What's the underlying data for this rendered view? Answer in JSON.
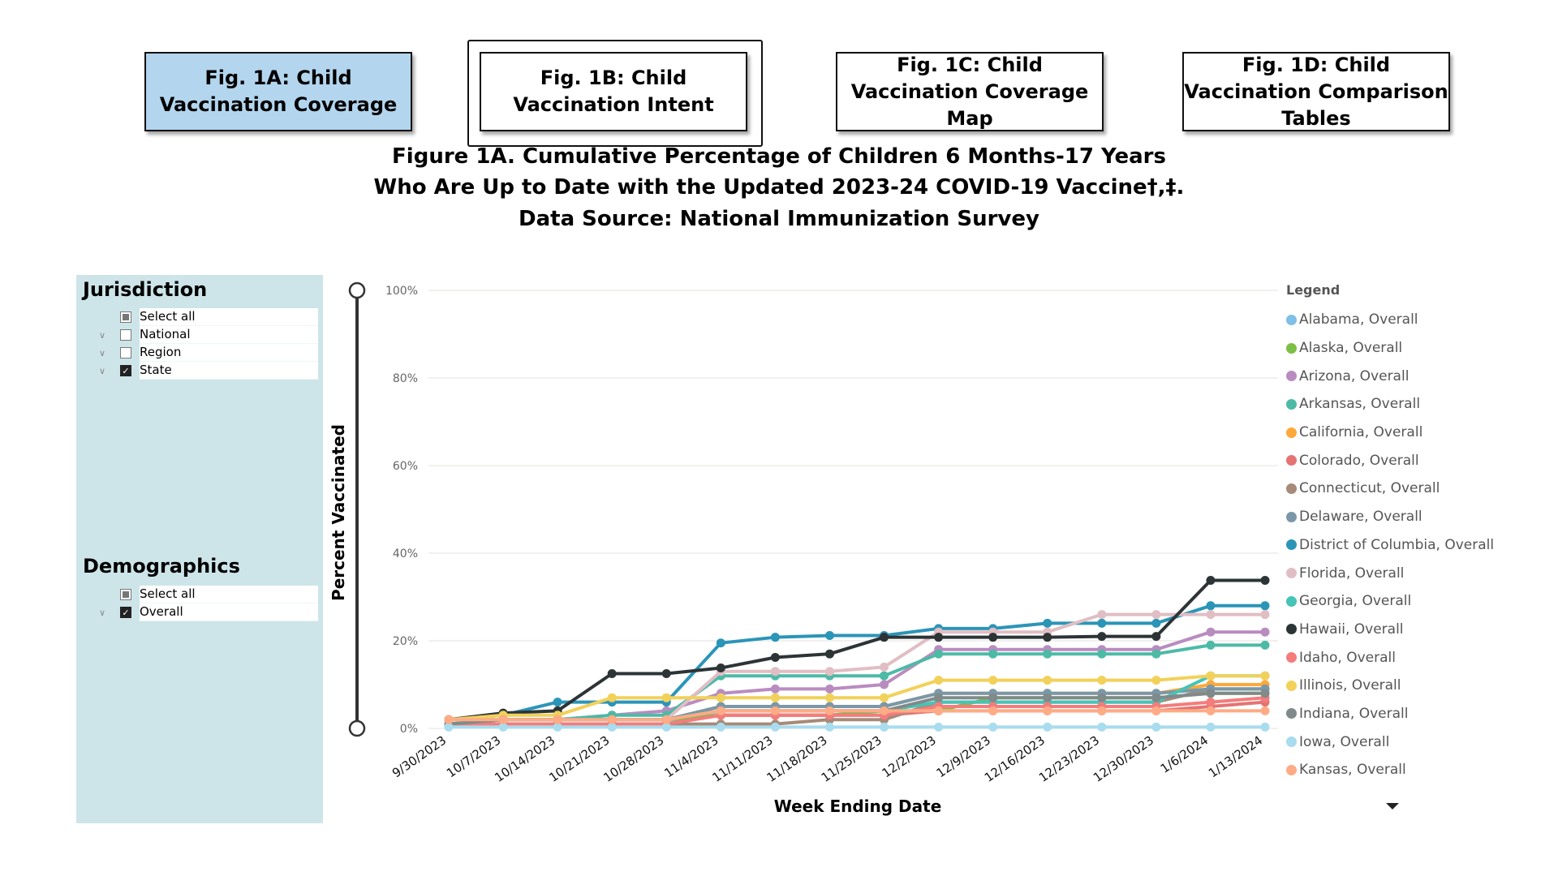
{
  "nav": [
    {
      "label": "Fig. 1A: Child Vaccination Coverage",
      "active": true
    },
    {
      "label": "Fig. 1B: Child Vaccination Intent",
      "active": false
    },
    {
      "label": "Fig. 1C: Child Vaccination Coverage Map",
      "active": false
    },
    {
      "label": "Fig. 1D: Child Vaccination Comparison Tables",
      "active": false
    }
  ],
  "title": {
    "line1": "Figure 1A. Cumulative Percentage of Children 6 Months-17 Years",
    "line2": "Who Are Up to Date with the Updated 2023-24 COVID-19 Vaccine†,‡.",
    "line3": "Data Source: National Immunization Survey"
  },
  "filters": {
    "jurisdiction": {
      "heading": "Jurisdiction",
      "items": [
        {
          "label": "Select all",
          "state": "partial",
          "expandable": false
        },
        {
          "label": "National",
          "state": "unchecked",
          "expandable": true
        },
        {
          "label": "Region",
          "state": "unchecked",
          "expandable": true
        },
        {
          "label": "State",
          "state": "checked",
          "expandable": true
        }
      ]
    },
    "demographics": {
      "heading": "Demographics",
      "items": [
        {
          "label": "Select all",
          "state": "partial",
          "expandable": false
        },
        {
          "label": "Overall",
          "state": "checked",
          "expandable": true
        }
      ]
    }
  },
  "chart_data": {
    "type": "line",
    "title": "Figure 1A. Cumulative Percentage of Children 6 Months-17 Years Who Are Up to Date with the Updated 2023-24 COVID-19 Vaccine",
    "xlabel": "Week Ending Date",
    "ylabel": "Percent Vaccinated",
    "ylim": [
      0,
      100
    ],
    "yticks": [
      "0%",
      "20%",
      "40%",
      "60%",
      "80%",
      "100%"
    ],
    "ytick_values": [
      0,
      20,
      40,
      60,
      80,
      100
    ],
    "grid": true,
    "legend_title": "Legend",
    "legend_position": "right",
    "categories": [
      "9/30/2023",
      "10/7/2023",
      "10/14/2023",
      "10/21/2023",
      "10/28/2023",
      "11/4/2023",
      "11/11/2023",
      "11/18/2023",
      "11/25/2023",
      "12/2/2023",
      "12/9/2023",
      "12/16/2023",
      "12/23/2023",
      "12/30/2023",
      "1/6/2024",
      "1/13/2024"
    ],
    "series": [
      {
        "name": "Alabama, Overall",
        "color": "#7fbfe8",
        "values": [
          1,
          1,
          1,
          1,
          1,
          4,
          4,
          4,
          4,
          6,
          6,
          6,
          6,
          6,
          9,
          9
        ]
      },
      {
        "name": "Alaska, Overall",
        "color": "#7dbf45",
        "values": [
          1,
          2,
          2,
          2,
          2,
          3,
          3,
          3,
          4,
          4,
          7,
          7,
          7,
          7,
          8,
          8
        ]
      },
      {
        "name": "Arizona, Overall",
        "color": "#b98cc0",
        "values": [
          1,
          2,
          2,
          3,
          4,
          8,
          9,
          9,
          10,
          18,
          18,
          18,
          18,
          18,
          22,
          22
        ]
      },
      {
        "name": "Arkansas, Overall",
        "color": "#4dbaa6",
        "values": [
          1,
          2,
          2,
          3,
          3,
          12,
          12,
          12,
          12,
          17,
          17,
          17,
          17,
          17,
          19,
          19
        ]
      },
      {
        "name": "California, Overall",
        "color": "#ffa83a",
        "values": [
          2,
          2,
          2,
          2,
          2,
          5,
          5,
          5,
          5,
          8,
          8,
          8,
          8,
          8,
          10,
          10
        ]
      },
      {
        "name": "Colorado, Overall",
        "color": "#e57373",
        "values": [
          1,
          1,
          1,
          1,
          1,
          3,
          3,
          3,
          3,
          4,
          4,
          4,
          4,
          4,
          5,
          6
        ]
      },
      {
        "name": "Connecticut, Overall",
        "color": "#a88a78",
        "values": [
          0.5,
          1,
          1,
          1,
          1,
          1,
          1,
          2,
          2,
          6,
          6,
          6,
          6,
          6,
          9,
          9
        ]
      },
      {
        "name": "Delaware, Overall",
        "color": "#7a98a8",
        "values": [
          1,
          2,
          2,
          2,
          2,
          5,
          5,
          5,
          5,
          8,
          8,
          8,
          8,
          8,
          9,
          9
        ]
      },
      {
        "name": "District of Columbia, Overall",
        "color": "#2b95b8",
        "values": [
          2,
          3,
          6,
          6,
          6,
          19.5,
          20.8,
          21.2,
          21.2,
          22.8,
          22.8,
          24,
          24,
          24,
          28,
          28
        ]
      },
      {
        "name": "Florida, Overall",
        "color": "#e0bec4",
        "values": [
          1,
          2,
          2,
          2,
          2,
          13,
          13,
          13,
          14,
          22,
          22,
          22,
          26,
          26,
          26,
          26
        ]
      },
      {
        "name": "Georgia, Overall",
        "color": "#46c4b7",
        "values": [
          1,
          2,
          2,
          2,
          2,
          4,
          4,
          4,
          4,
          6,
          6,
          6,
          6,
          6,
          12,
          12
        ]
      },
      {
        "name": "Hawaii, Overall",
        "color": "#2d3436",
        "values": [
          2,
          3.5,
          4,
          12.5,
          12.5,
          13.8,
          16.2,
          17,
          20.8,
          20.8,
          20.8,
          20.8,
          21,
          21,
          33.8,
          33.8
        ]
      },
      {
        "name": "Idaho, Overall",
        "color": "#f47c7c",
        "values": [
          1,
          1,
          1,
          1,
          1,
          3,
          3,
          3,
          3,
          5,
          5,
          5,
          5,
          5,
          6,
          7
        ]
      },
      {
        "name": "Illinois, Overall",
        "color": "#f2d15a",
        "values": [
          2,
          3,
          3,
          7,
          7,
          7,
          7,
          7,
          7,
          11,
          11,
          11,
          11,
          11,
          12,
          12
        ]
      },
      {
        "name": "Indiana, Overall",
        "color": "#808a8a",
        "values": [
          1,
          2,
          2,
          2,
          2,
          4,
          4,
          4,
          4,
          7,
          7,
          7,
          7,
          7,
          8,
          8
        ]
      },
      {
        "name": "Iowa, Overall",
        "color": "#a8dcee",
        "values": [
          0.3,
          0.3,
          0.3,
          0.3,
          0.3,
          0.3,
          0.3,
          0.3,
          0.3,
          0.3,
          0.3,
          0.3,
          0.3,
          0.3,
          0.3,
          0.3
        ]
      },
      {
        "name": "Kansas, Overall",
        "color": "#ffab85",
        "values": [
          2,
          2,
          2,
          2,
          2,
          4,
          4,
          4,
          4,
          4,
          4,
          4,
          4,
          4,
          4,
          4
        ]
      }
    ]
  }
}
